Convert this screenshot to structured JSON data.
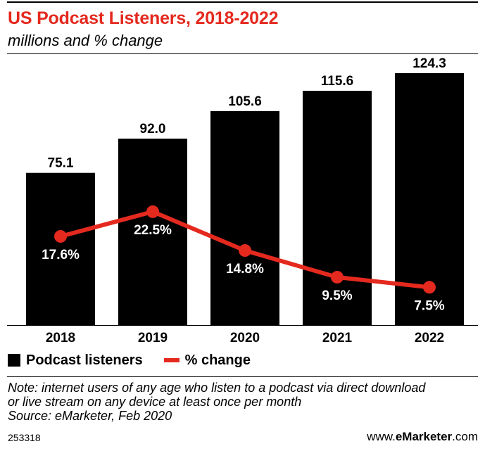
{
  "header": {
    "title": "US Podcast Listeners, 2018-2022",
    "subtitle": "millions and % change"
  },
  "legend": {
    "bars_label": "Podcast listeners",
    "line_label": "% change"
  },
  "note": {
    "line1": "Note: internet users of any age who listen to a podcast via direct download",
    "line2": "or live stream on any device at least once per month",
    "line3": "Source: eMarketer, Feb 2020"
  },
  "footer": {
    "chart_id": "253318",
    "brand_prefix": "www.",
    "brand_bold": "eMarketer",
    "brand_suffix": ".com"
  },
  "colors": {
    "bar": "#000000",
    "line": "#e4291e",
    "title": "#e4291e",
    "text": "#000000"
  },
  "chart_data": {
    "type": "bar",
    "title": "US Podcast Listeners, 2018-2022",
    "subtitle": "millions and % change",
    "categories": [
      "2018",
      "2019",
      "2020",
      "2021",
      "2022"
    ],
    "series": [
      {
        "name": "Podcast listeners",
        "type": "bar",
        "values": [
          75.1,
          92.0,
          105.6,
          115.6,
          124.3
        ],
        "labels": [
          "75.1",
          "92.0",
          "105.6",
          "115.6",
          "124.3"
        ]
      },
      {
        "name": "% change",
        "type": "line",
        "values": [
          17.6,
          22.5,
          14.8,
          9.5,
          7.5
        ],
        "labels": [
          "17.6%",
          "22.5%",
          "14.8%",
          "9.5%",
          "7.5%"
        ]
      }
    ],
    "bar_ylim": [
      0,
      124.3
    ],
    "line_ylim": [
      0,
      50
    ],
    "grid": false,
    "legend_position": "bottom-left"
  }
}
